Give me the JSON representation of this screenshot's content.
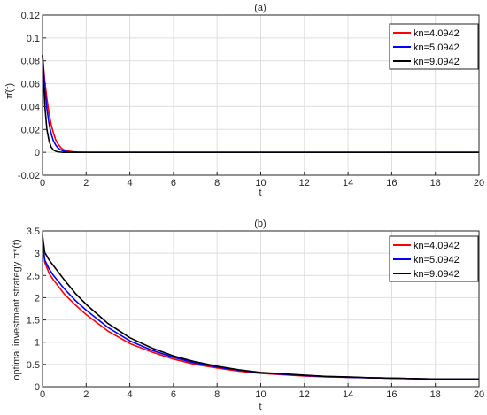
{
  "chart_data": [
    {
      "type": "line",
      "title": "(a)",
      "xlabel": "t",
      "ylabel": "π̂(t)",
      "xlim": [
        0,
        20
      ],
      "ylim": [
        -0.02,
        0.12
      ],
      "xticks": [
        "0",
        "2",
        "4",
        "6",
        "8",
        "10",
        "12",
        "14",
        "16",
        "18",
        "20"
      ],
      "yticks": [
        "-0.02",
        "0",
        "0.02",
        "0.04",
        "0.06",
        "0.08",
        "0.1",
        "0.12"
      ],
      "grid": true,
      "legend_position": "top-right",
      "series": [
        {
          "name": "kn=4.0942",
          "color": "#ff0000",
          "x": [
            0,
            0.1,
            0.2,
            0.3,
            0.4,
            0.5,
            0.6,
            0.7,
            0.8,
            0.9,
            1.0,
            1.2,
            1.4,
            1.6,
            2,
            3,
            4,
            5,
            6,
            7,
            8,
            9,
            10,
            11,
            12,
            13,
            14,
            15,
            16,
            17,
            18,
            19,
            20
          ],
          "y": [
            0.085,
            0.063,
            0.047,
            0.034,
            0.024,
            0.017,
            0.011,
            0.0075,
            0.005,
            0.003,
            0.002,
            0.001,
            0.0005,
            0.0002,
            0,
            0,
            0,
            0,
            0,
            0,
            0,
            0,
            0,
            0,
            0,
            0,
            0,
            0,
            0,
            0,
            0,
            0,
            0
          ]
        },
        {
          "name": "kn=5.0942",
          "color": "#0000ff",
          "x": [
            0,
            0.1,
            0.2,
            0.3,
            0.4,
            0.5,
            0.6,
            0.7,
            0.8,
            0.9,
            1.0,
            1.2,
            1.4,
            1.6,
            2,
            3,
            4,
            5,
            6,
            7,
            8,
            9,
            10,
            11,
            12,
            13,
            14,
            15,
            16,
            17,
            18,
            19,
            20
          ],
          "y": [
            0.085,
            0.057,
            0.038,
            0.025,
            0.016,
            0.01,
            0.0065,
            0.004,
            0.0025,
            0.0015,
            0.001,
            0.0004,
            0.0002,
            0,
            0,
            0,
            0,
            0,
            0,
            0,
            0,
            0,
            0,
            0,
            0,
            0,
            0,
            0,
            0,
            0,
            0,
            0,
            0
          ]
        },
        {
          "name": "kn=9.0942",
          "color": "#000000",
          "x": [
            0,
            0.1,
            0.2,
            0.3,
            0.4,
            0.5,
            0.6,
            0.7,
            0.8,
            0.9,
            1.0,
            1.2,
            1.4,
            1.6,
            2,
            3,
            4,
            5,
            6,
            7,
            8,
            9,
            10,
            11,
            12,
            13,
            14,
            15,
            16,
            17,
            18,
            19,
            20
          ],
          "y": [
            0.085,
            0.042,
            0.02,
            0.01,
            0.0045,
            0.002,
            0.001,
            0.0004,
            0.0002,
            0,
            0,
            0,
            0,
            0,
            0,
            0,
            0,
            0,
            0,
            0,
            0,
            0,
            0,
            0,
            0,
            0,
            0,
            0,
            0,
            0,
            0,
            0,
            0
          ]
        }
      ]
    },
    {
      "type": "line",
      "title": "(b)",
      "xlabel": "t",
      "ylabel": "optimal investment strategy π*(t)",
      "xlim": [
        0,
        20
      ],
      "ylim": [
        0,
        3.5
      ],
      "xticks": [
        "0",
        "2",
        "4",
        "6",
        "8",
        "10",
        "12",
        "14",
        "16",
        "18",
        "20"
      ],
      "yticks": [
        "0",
        "0.5",
        "1",
        "1.5",
        "2",
        "2.5",
        "3",
        "3.5"
      ],
      "grid": true,
      "legend_position": "top-right",
      "series": [
        {
          "name": "kn=4.0942",
          "color": "#ff0000",
          "x": [
            0,
            0.1,
            0.3,
            0.5,
            1,
            1.5,
            2,
            3,
            4,
            5,
            6,
            7,
            8,
            9,
            10,
            11,
            12,
            13,
            14,
            15,
            16,
            17,
            18,
            19,
            20
          ],
          "y": [
            3.3,
            2.8,
            2.55,
            2.4,
            2.08,
            1.84,
            1.62,
            1.25,
            0.97,
            0.78,
            0.62,
            0.5,
            0.42,
            0.35,
            0.3,
            0.27,
            0.24,
            0.22,
            0.21,
            0.2,
            0.19,
            0.18,
            0.17,
            0.17,
            0.17
          ]
        },
        {
          "name": "kn=5.0942",
          "color": "#0000ff",
          "x": [
            0,
            0.1,
            0.3,
            0.5,
            1,
            1.5,
            2,
            3,
            4,
            5,
            6,
            7,
            8,
            9,
            10,
            11,
            12,
            13,
            14,
            15,
            16,
            17,
            18,
            19,
            20
          ],
          "y": [
            3.35,
            2.85,
            2.65,
            2.5,
            2.2,
            1.94,
            1.72,
            1.33,
            1.03,
            0.82,
            0.66,
            0.53,
            0.44,
            0.37,
            0.31,
            0.28,
            0.25,
            0.23,
            0.21,
            0.2,
            0.19,
            0.18,
            0.17,
            0.17,
            0.17
          ]
        },
        {
          "name": "kn=9.0942",
          "color": "#000000",
          "x": [
            0,
            0.1,
            0.3,
            0.5,
            1,
            1.5,
            2,
            3,
            4,
            5,
            6,
            7,
            8,
            9,
            10,
            11,
            12,
            13,
            14,
            15,
            16,
            17,
            18,
            19,
            20
          ],
          "y": [
            3.4,
            3.02,
            2.85,
            2.72,
            2.4,
            2.1,
            1.85,
            1.42,
            1.1,
            0.87,
            0.69,
            0.56,
            0.46,
            0.38,
            0.32,
            0.29,
            0.26,
            0.23,
            0.22,
            0.2,
            0.19,
            0.18,
            0.17,
            0.17,
            0.17
          ]
        }
      ]
    }
  ]
}
